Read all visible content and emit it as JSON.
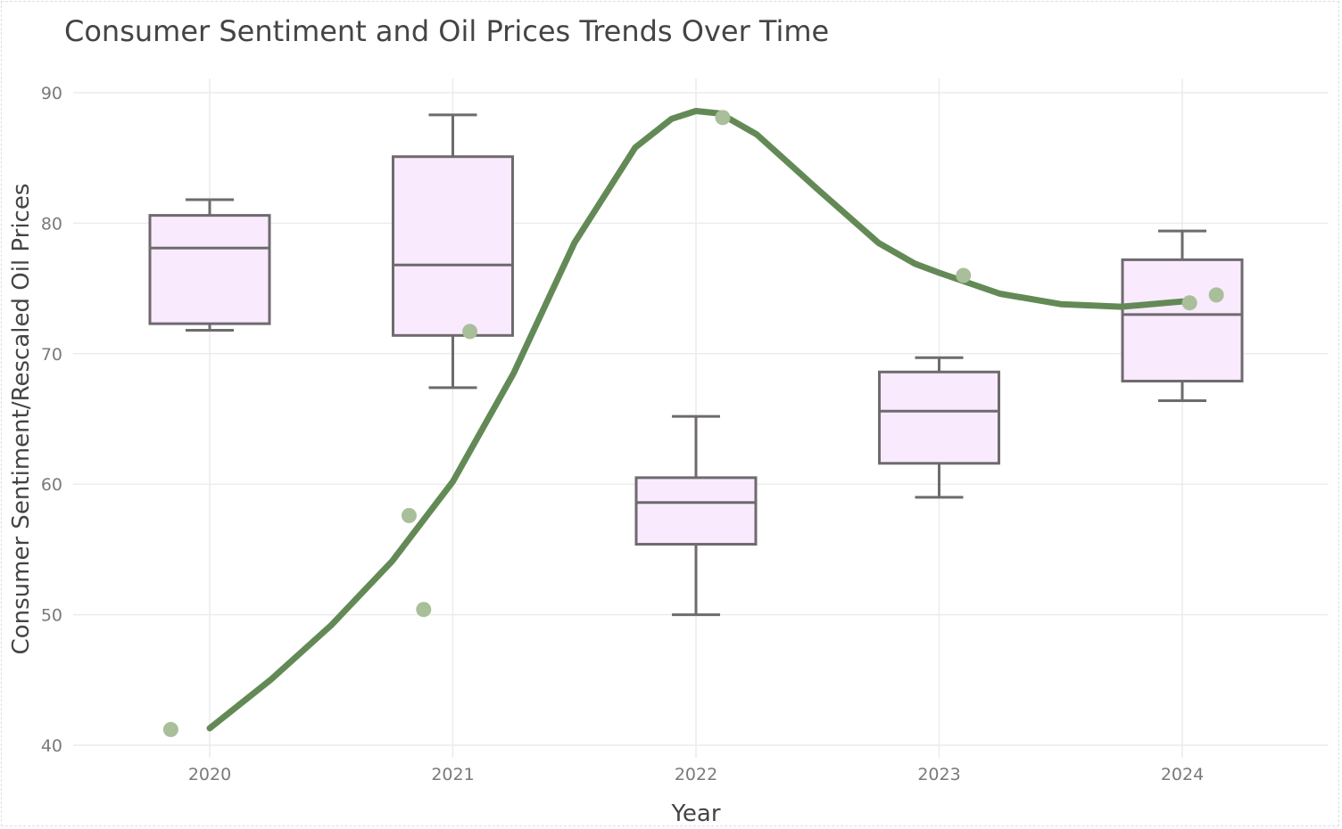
{
  "chart_data": {
    "type": "box",
    "title": "Consumer Sentiment and Oil Prices Trends Over Time",
    "xlabel": "Year",
    "ylabel": "Consumer Sentiment/Rescaled Oil Prices",
    "categories": [
      "2020",
      "2021",
      "2022",
      "2023",
      "2024"
    ],
    "x_ticks": [
      "2020",
      "2021",
      "2022",
      "2023",
      "2024"
    ],
    "ylim": [
      39,
      91
    ],
    "y_ticks": [
      40,
      50,
      60,
      70,
      80,
      90
    ],
    "grid": true,
    "legend": "none",
    "box_fill": "#f9eafd",
    "box_stroke": "#6e6a6e",
    "line_color": "#638a56",
    "point_color": "#a8bf9a",
    "boxes": [
      {
        "category": "2020",
        "min": 71.8,
        "q1": 72.3,
        "median": 78.1,
        "q3": 80.6,
        "max": 81.8
      },
      {
        "category": "2021",
        "min": 67.4,
        "q1": 71.4,
        "median": 76.8,
        "q3": 85.1,
        "max": 88.3
      },
      {
        "category": "2022",
        "min": 50.0,
        "q1": 55.4,
        "median": 58.6,
        "q3": 60.5,
        "max": 65.2
      },
      {
        "category": "2023",
        "min": 59.0,
        "q1": 61.6,
        "median": 65.6,
        "q3": 68.6,
        "max": 69.7
      },
      {
        "category": "2024",
        "min": 66.4,
        "q1": 67.9,
        "median": 73.0,
        "q3": 77.2,
        "max": 79.4
      }
    ],
    "points": [
      {
        "x": 2019.84,
        "y": 41.2
      },
      {
        "x": 2020.82,
        "y": 57.6
      },
      {
        "x": 2020.88,
        "y": 50.4
      },
      {
        "x": 2021.07,
        "y": 71.7
      },
      {
        "x": 2022.11,
        "y": 88.1
      },
      {
        "x": 2023.1,
        "y": 76.0
      },
      {
        "x": 2024.03,
        "y": 73.9
      },
      {
        "x": 2024.14,
        "y": 74.5
      }
    ],
    "trend_line": {
      "x": [
        2020.0,
        2020.25,
        2020.5,
        2020.75,
        2021.0,
        2021.25,
        2021.5,
        2021.75,
        2021.9,
        2022.0,
        2022.1,
        2022.25,
        2022.5,
        2022.75,
        2022.9,
        2023.0,
        2023.25,
        2023.5,
        2023.75,
        2024.0
      ],
      "y": [
        41.3,
        45.0,
        49.2,
        54.1,
        60.2,
        68.5,
        78.5,
        85.8,
        88.0,
        88.6,
        88.4,
        86.8,
        82.6,
        78.5,
        76.9,
        76.2,
        74.6,
        73.8,
        73.6,
        74.0
      ]
    }
  }
}
